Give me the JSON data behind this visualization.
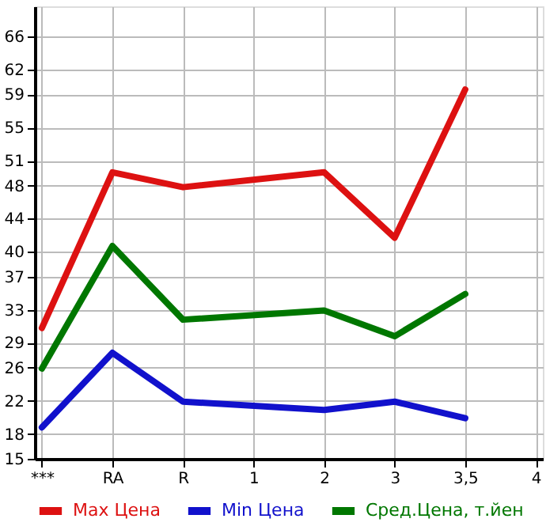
{
  "chart_data": {
    "type": "line",
    "categories": [
      "***",
      "RA",
      "R",
      "1",
      "2",
      "3",
      "3,5",
      "4"
    ],
    "series": [
      {
        "name": "Max Цена",
        "color": "#dd1111",
        "values": [
          30.8,
          49.6,
          47.8,
          null,
          49.6,
          41.7,
          59.6,
          null
        ]
      },
      {
        "name": "Min Цена",
        "color": "#1111cc",
        "values": [
          18.8,
          27.8,
          21.9,
          null,
          20.9,
          21.9,
          19.9,
          null
        ]
      },
      {
        "name": "Сред.Цена, т.йен",
        "color": "#007700",
        "values": [
          25.9,
          40.7,
          31.8,
          null,
          32.9,
          29.8,
          34.9,
          null
        ]
      }
    ],
    "ylim": [
      15,
      69.64
    ],
    "yticks": [
      15,
      18,
      22,
      26,
      29,
      33,
      37,
      40,
      44,
      48,
      51,
      55,
      59,
      62,
      66
    ],
    "grid": true,
    "legend": "bottom",
    "marker": "none",
    "line_style": "solid"
  }
}
